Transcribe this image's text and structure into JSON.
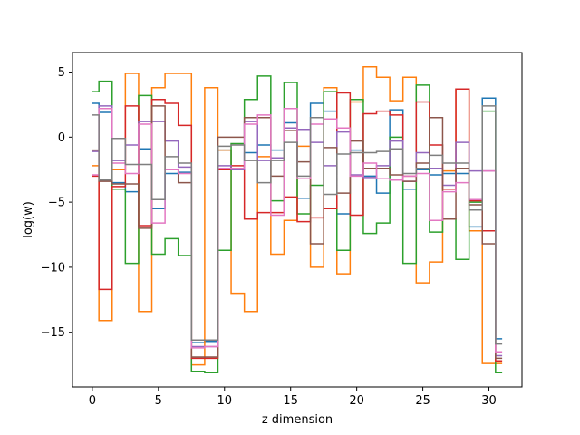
{
  "chart_data": {
    "type": "line",
    "drawstyle": "steps-mid",
    "title": "",
    "xlabel": "z dimension",
    "ylabel": "log(w)",
    "xlim": [
      -1.5,
      32.5
    ],
    "ylim": [
      -19.2,
      6.5
    ],
    "xticks": [
      0,
      5,
      10,
      15,
      20,
      25,
      30
    ],
    "yticks": [
      5,
      0,
      -5,
      -10,
      -15
    ],
    "grid": false,
    "legend": "none",
    "x": [
      0,
      1,
      2,
      3,
      4,
      5,
      6,
      7,
      8,
      9,
      10,
      11,
      12,
      13,
      14,
      15,
      16,
      17,
      18,
      19,
      20,
      21,
      22,
      23,
      24,
      25,
      26,
      27,
      28,
      29,
      30,
      31
    ],
    "series": [
      {
        "color": "#1f77b4",
        "values": [
          2.6,
          1.9,
          -3.5,
          -4.2,
          -0.9,
          -5.5,
          -2.8,
          -2.7,
          -15.8,
          -15.7,
          -1.0,
          -2.5,
          -1.2,
          -0.6,
          -1.0,
          1.1,
          -4.7,
          2.6,
          2.0,
          -5.9,
          -1.0,
          -3.0,
          -4.3,
          2.1,
          -4.0,
          -2.5,
          -2.9,
          -2.8,
          -2.8,
          -6.9,
          3.0,
          -15.5
        ]
      },
      {
        "color": "#ff7f0e",
        "values": [
          -2.2,
          -14.1,
          -2.5,
          4.9,
          -13.4,
          3.8,
          4.9,
          4.9,
          -17.5,
          3.8,
          -1.0,
          -12.0,
          -13.4,
          -1.5,
          -9.0,
          -6.4,
          -0.7,
          -10.0,
          3.8,
          -10.5,
          2.7,
          5.4,
          4.6,
          2.8,
          4.6,
          -11.2,
          -9.6,
          -2.6,
          3.7,
          -7.2,
          -17.4,
          -17.4
        ]
      },
      {
        "color": "#2ca02c",
        "values": [
          3.5,
          4.3,
          -4.0,
          -9.7,
          3.2,
          -9.0,
          -7.8,
          -9.1,
          -18.0,
          -18.1,
          -8.7,
          -0.5,
          2.9,
          4.7,
          -4.9,
          4.2,
          -5.9,
          -3.7,
          3.5,
          -8.7,
          2.9,
          -7.4,
          -6.6,
          0.0,
          -9.7,
          4.0,
          -7.3,
          -6.3,
          -9.4,
          -5.0,
          2.0,
          -18.1
        ]
      },
      {
        "color": "#d62728",
        "values": [
          -3.0,
          -11.7,
          -3.8,
          2.4,
          -6.8,
          2.9,
          2.6,
          0.9,
          -17.0,
          -17.0,
          -2.5,
          -2.2,
          -6.3,
          -5.8,
          -5.8,
          -4.6,
          -6.5,
          -6.2,
          -5.5,
          3.4,
          -6.0,
          1.8,
          2.0,
          1.7,
          -3.0,
          2.7,
          -0.6,
          -4.0,
          3.7,
          -4.9,
          -7.2,
          -17.2
        ]
      },
      {
        "color": "#9467bd",
        "values": [
          -1.1,
          2.4,
          -1.8,
          -0.6,
          1.2,
          1.2,
          -0.3,
          -2.3,
          -16.1,
          -16.1,
          -2.2,
          -2.5,
          1.2,
          -1.8,
          -1.6,
          0.7,
          0.6,
          -0.4,
          -2.2,
          0.4,
          -2.9,
          -3.1,
          -2.2,
          -0.3,
          -3.4,
          -1.2,
          -2.4,
          -3.7,
          -0.4,
          -2.6,
          -2.6,
          -16.8
        ]
      },
      {
        "color": "#8c564b",
        "values": [
          -1.0,
          -3.4,
          -3.6,
          -3.6,
          -7.0,
          2.4,
          -2.5,
          -3.5,
          -16.9,
          -16.9,
          0.0,
          0.0,
          1.5,
          1.5,
          -3.0,
          0.5,
          -1.9,
          -8.2,
          -0.8,
          -4.3,
          -0.3,
          -2.4,
          -2.4,
          -2.9,
          -3.4,
          -2.0,
          1.5,
          -6.3,
          -2.4,
          -5.2,
          -8.2,
          -17.0
        ]
      },
      {
        "color": "#e377c2",
        "values": [
          -2.9,
          2.2,
          -2.0,
          -2.8,
          1.0,
          -6.6,
          -2.5,
          -2.8,
          -16.2,
          -16.1,
          -2.4,
          -2.4,
          1.0,
          1.7,
          -6.0,
          2.2,
          -3.2,
          1.0,
          1.4,
          0.7,
          -3.0,
          -2.0,
          -3.2,
          -3.3,
          -3.0,
          -2.8,
          -6.4,
          -4.2,
          -3.5,
          -4.8,
          -2.6,
          -16.5
        ]
      },
      {
        "color": "#7f7f7f",
        "values": [
          1.7,
          -3.3,
          -0.1,
          -2.1,
          -2.1,
          -4.8,
          -1.5,
          -2.0,
          -15.6,
          -15.6,
          -0.7,
          -0.6,
          -1.8,
          -3.5,
          -1.8,
          -0.4,
          -3.0,
          1.5,
          -4.4,
          -1.3,
          -1.2,
          -1.2,
          -1.1,
          -0.9,
          -2.8,
          -2.4,
          -1.4,
          -2.0,
          -2.0,
          -5.6,
          2.4,
          -15.9
        ]
      }
    ]
  }
}
